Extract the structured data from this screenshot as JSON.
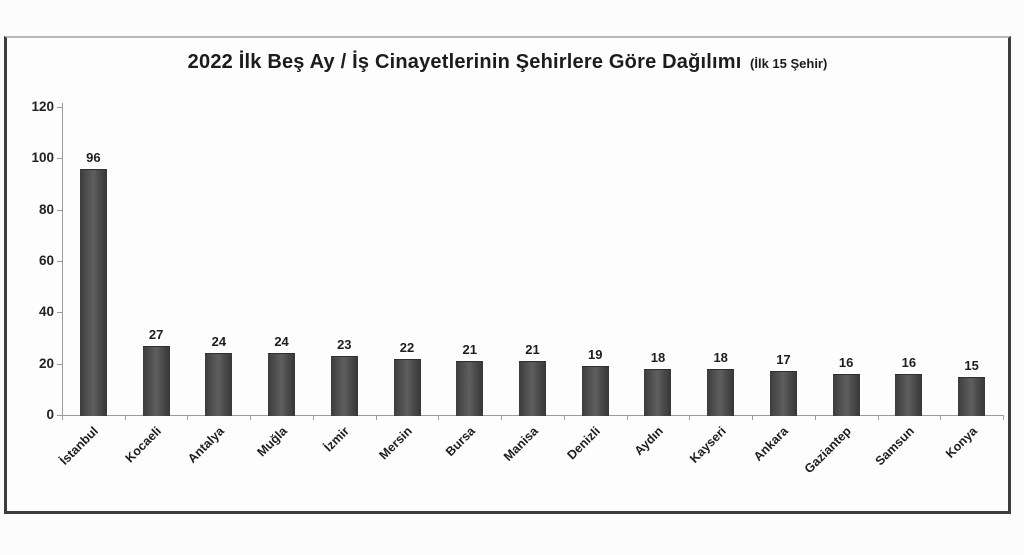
{
  "chart": {
    "title_main": "2022 İlk Beş Ay / İş Cinayetlerinin Şehirlere Göre Dağılımı",
    "title_suffix": "(İlk 15 Şehir)",
    "colors": {
      "bar": "#4d4d4d",
      "axis": "#9b9b9b",
      "text": "#1e1e1e",
      "frame_border": "#3d3d3d",
      "background": "#fdfdfd"
    }
  },
  "chart_data": {
    "type": "bar",
    "title": "2022 İlk Beş Ay / İş Cinayetlerinin Şehirlere Göre Dağılımı (İlk 15 Şehir)",
    "categories": [
      "İstanbul",
      "Kocaeli",
      "Antalya",
      "Muğla",
      "İzmir",
      "Mersin",
      "Bursa",
      "Manisa",
      "Denizli",
      "Aydın",
      "Kayseri",
      "Ankara",
      "Gaziantep",
      "Samsun",
      "Konya"
    ],
    "values": [
      96,
      27,
      24,
      24,
      23,
      22,
      21,
      21,
      19,
      18,
      18,
      17,
      16,
      16,
      15
    ],
    "xlabel": "",
    "ylabel": "",
    "ylim": [
      0,
      120
    ],
    "yticks": [
      0,
      20,
      40,
      60,
      80,
      100,
      120
    ],
    "grid": false,
    "legend": null,
    "data_labels": true,
    "x_label_rotation_deg": -45
  }
}
